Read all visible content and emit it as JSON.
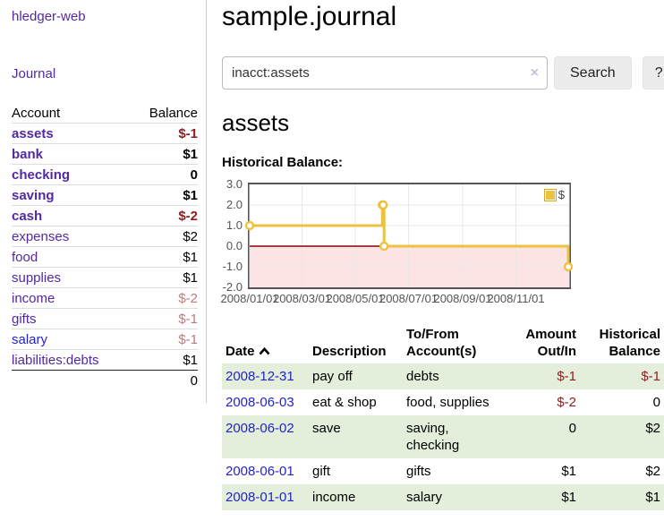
{
  "app": {
    "title": "hledger-web",
    "nav_journal": "Journal"
  },
  "colors": {
    "accent_purple": "#5229a3",
    "link_blue": "#2323cc",
    "negative_red": "#8f1d1d",
    "negative_soft_red": "#c17979",
    "series_gold": "#EDC240",
    "row_green": "#e3efda",
    "negative_region_pink": "#fce4e4",
    "zero_line_red": "#8b0000"
  },
  "sidebar": {
    "table": {
      "headers": {
        "account": "Account",
        "balance": "Balance"
      },
      "rows": [
        {
          "name": "assets",
          "balance": "$-1",
          "depth": 1,
          "bold": true,
          "tone": "neg"
        },
        {
          "name": "bank",
          "balance": "$1",
          "depth": 2,
          "bold": true,
          "tone": ""
        },
        {
          "name": "checking",
          "balance": "0",
          "depth": 3,
          "bold": true,
          "tone": ""
        },
        {
          "name": "saving",
          "balance": "$1",
          "depth": 3,
          "bold": true,
          "tone": ""
        },
        {
          "name": "cash",
          "balance": "$-2",
          "depth": 2,
          "bold": true,
          "tone": "neg"
        },
        {
          "name": "expenses",
          "balance": "$2",
          "depth": 1,
          "bold": false,
          "tone": ""
        },
        {
          "name": "food",
          "balance": "$1",
          "depth": 2,
          "bold": false,
          "tone": ""
        },
        {
          "name": "supplies",
          "balance": "$1",
          "depth": 2,
          "bold": false,
          "tone": ""
        },
        {
          "name": "income",
          "balance": "$-2",
          "depth": 1,
          "bold": false,
          "tone": "neg-soft"
        },
        {
          "name": "gifts",
          "balance": "$-1",
          "depth": 2,
          "bold": false,
          "tone": "neg-soft"
        },
        {
          "name": "salary",
          "balance": "$-1",
          "depth": 2,
          "bold": false,
          "tone": "neg-soft",
          "blue": true
        },
        {
          "name": "liabilities:debts",
          "balance": "$1",
          "depth": 1,
          "bold": false,
          "tone": ""
        }
      ],
      "total": "0"
    }
  },
  "header": {
    "title": "sample.journal"
  },
  "search": {
    "value": "inacct:assets",
    "clear_label": "×",
    "button": "Search",
    "help_button": "?"
  },
  "account_page": {
    "title": "assets",
    "chart_label": "Historical Balance:"
  },
  "chart_data": {
    "type": "line",
    "step": true,
    "title": "Historical Balance",
    "series": [
      {
        "name": "$",
        "color": "#EDC240",
        "points": [
          [
            "2008-01-01",
            1
          ],
          [
            "2008-06-01",
            2
          ],
          [
            "2008-06-02",
            2
          ],
          [
            "2008-06-03",
            0
          ],
          [
            "2008-12-31",
            -1
          ]
        ]
      }
    ],
    "xlim": [
      "2008-01-01",
      "2009-01-01"
    ],
    "ylim": [
      -2,
      3
    ],
    "yticks": [
      "3.0",
      "2.0",
      "1.0",
      "0.0",
      "-1.0",
      "-2.0"
    ],
    "xticks": [
      "2008/01/01",
      "2008/03/01",
      "2008/05/01",
      "2008/07/01",
      "2008/09/01",
      "2008/11/01"
    ],
    "xtick_dates": [
      "2008-01-01",
      "2008-03-01",
      "2008-05-01",
      "2008-07-01",
      "2008-09-01",
      "2008-11-01"
    ],
    "grid": true,
    "legend_position": "top-right",
    "negative_fill": "#fce4e4",
    "zero_line_color": "#8b0000"
  },
  "register": {
    "headers": [
      "Date",
      "Description",
      "To/From Account(s)",
      "Amount Out/In",
      "Historical Balance"
    ],
    "sort_icon": "chevron-up",
    "rows": [
      {
        "date": "2008-12-31",
        "description": "pay off",
        "accounts": "debts",
        "amount": "$-1",
        "amount_neg": true,
        "balance": "$-1",
        "balance_neg": true
      },
      {
        "date": "2008-06-03",
        "description": "eat & shop",
        "accounts": "food, supplies",
        "amount": "$-2",
        "amount_neg": true,
        "balance": "0",
        "balance_neg": false
      },
      {
        "date": "2008-06-02",
        "description": "save",
        "accounts": "saving, checking",
        "amount": "0",
        "amount_neg": false,
        "balance": "$2",
        "balance_neg": false
      },
      {
        "date": "2008-06-01",
        "description": "gift",
        "accounts": "gifts",
        "amount": "$1",
        "amount_neg": false,
        "balance": "$2",
        "balance_neg": false
      },
      {
        "date": "2008-01-01",
        "description": "income",
        "accounts": "salary",
        "amount": "$1",
        "amount_neg": false,
        "balance": "$1",
        "balance_neg": false
      }
    ]
  }
}
